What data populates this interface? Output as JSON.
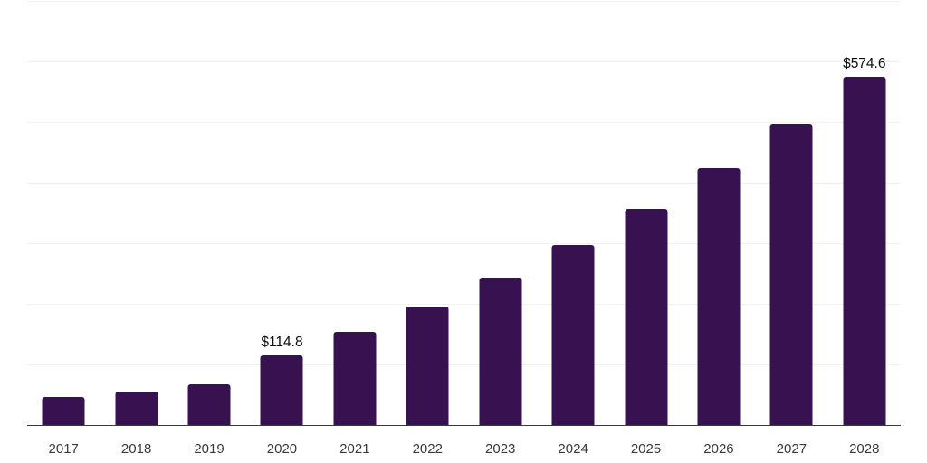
{
  "page": {
    "background_color": "#ffffff"
  },
  "chart_data": {
    "type": "bar",
    "title": "",
    "xlabel": "",
    "ylabel": "",
    "categories": [
      "2017",
      "2018",
      "2019",
      "2020",
      "2021",
      "2022",
      "2023",
      "2024",
      "2025",
      "2026",
      "2027",
      "2028"
    ],
    "values": [
      46.1,
      55.9,
      67.4,
      114.8,
      154.4,
      195.3,
      243.0,
      296.5,
      356.8,
      424.0,
      497.1,
      574.6
    ],
    "point_labels": {
      "2020": "$114.8",
      "2028": "$574.6"
    },
    "ylim": [
      0,
      700
    ],
    "gridline_step": 100,
    "grid": "horizontal-only",
    "y_tick_labels_visible": false,
    "legend": "none",
    "colors": {
      "bar": "#381151",
      "axis_line": "#3a3a3a",
      "gridline": "#f2f2f2",
      "value_label": "#0d0d0d",
      "tick_label": "#3a3a3a"
    }
  }
}
